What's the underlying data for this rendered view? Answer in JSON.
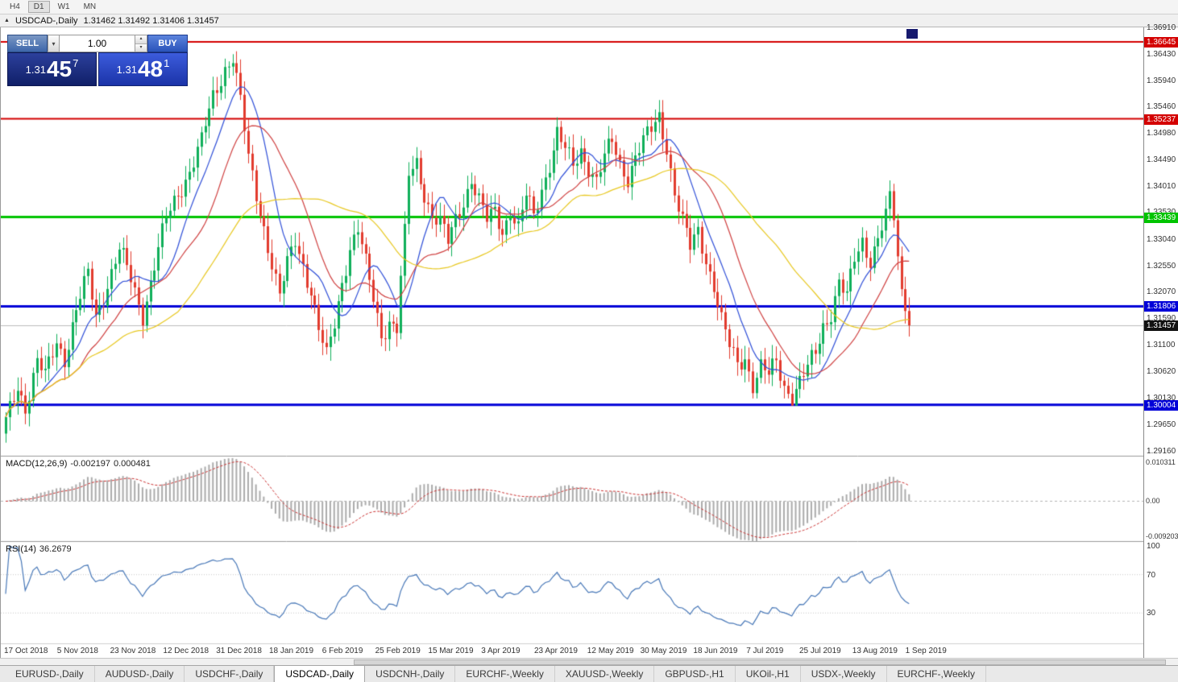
{
  "icons": {
    "chart_icon": "▲",
    "dropdown_arrow": "▾",
    "spin_up": "▴",
    "spin_down": "▾"
  },
  "toolbar": {
    "timeframes": [
      "H4",
      "D1",
      "W1",
      "MN"
    ],
    "active": "D1"
  },
  "chart_header": {
    "symbol_label": "USDCAD-,Daily",
    "ohlc_text": "1.31462 1.31492 1.31406 1.31457"
  },
  "trade_panel": {
    "sell_label": "SELL",
    "buy_label": "BUY",
    "volume": "1.00",
    "sell_price_prefix": "1.31",
    "sell_price_big": "45",
    "sell_price_pip": "7",
    "buy_price_prefix": "1.31",
    "buy_price_big": "48",
    "buy_price_pip": "1"
  },
  "macd_panel": {
    "name": "MACD(12,26,9)",
    "value1": "-0.002197",
    "value2": "0.000481",
    "axis_labels": [
      {
        "text": "0.010311",
        "value": 0.010311
      },
      {
        "text": "0.00",
        "value": 0
      },
      {
        "text": "-0.009203",
        "value": -0.009203
      }
    ]
  },
  "rsi_panel": {
    "name": "RSI(14)",
    "value": "36.2679",
    "axis_labels": [
      {
        "text": "100",
        "value": 100
      },
      {
        "text": "70",
        "value": 70
      },
      {
        "text": "30",
        "value": 30
      }
    ]
  },
  "tabs": [
    {
      "label": "EURUSD-,Daily",
      "active": false
    },
    {
      "label": "AUDUSD-,Daily",
      "active": false
    },
    {
      "label": "USDCHF-,Daily",
      "active": false
    },
    {
      "label": "USDCAD-,Daily",
      "active": true
    },
    {
      "label": "USDCNH-,Daily",
      "active": false
    },
    {
      "label": "EURCHF-,Weekly",
      "active": false
    },
    {
      "label": "XAUUSD-,Weekly",
      "active": false
    },
    {
      "label": "GBPUSD-,H1",
      "active": false
    },
    {
      "label": "UKOil-,H1",
      "active": false
    },
    {
      "label": "USDX-,Weekly",
      "active": false
    },
    {
      "label": "EURCHF-,Weekly",
      "active": false
    }
  ],
  "chart_data": {
    "type": "candlestick",
    "symbol": "USDCAD-",
    "timeframe": "Daily",
    "ohlc_display": {
      "open": "1.31462",
      "high": "1.31492",
      "low": "1.31406",
      "close": "1.31457"
    },
    "price_scale": {
      "top": 1.3691,
      "bottom": 1.2916
    },
    "axis_ticks": [
      "1.36910",
      "1.36430",
      "1.35940",
      "1.35460",
      "1.34980",
      "1.34490",
      "1.34010",
      "1.33530",
      "1.33040",
      "1.32550",
      "1.32070",
      "1.31590",
      "1.31100",
      "1.30620",
      "1.30130",
      "1.29650",
      "1.29160"
    ],
    "levels": [
      {
        "value": 1.36645,
        "label": "1.36645",
        "color": "#d40000",
        "width": 2
      },
      {
        "value": 1.35237,
        "label": "1.35237",
        "color": "#d40000",
        "width": 2
      },
      {
        "value": 1.33439,
        "label": "1.33439",
        "color": "#00c400",
        "width": 3
      },
      {
        "value": 1.31806,
        "label": "1.31806",
        "color": "#0000d8",
        "width": 3
      },
      {
        "value": 1.30004,
        "label": "1.30004",
        "color": "#0000d8",
        "width": 3
      }
    ],
    "current_price": {
      "value": 1.31457,
      "label": "1.31457",
      "color": "#111111"
    },
    "candle_colors": {
      "up": "#0faf5a",
      "down": "#e23b2e"
    },
    "ma": [
      {
        "name": "ma-fast",
        "period": 10,
        "color": "#2f4fd8"
      },
      {
        "name": "ma-mid",
        "period": 20,
        "color": "#d04040"
      },
      {
        "name": "ma-slow",
        "period": 45,
        "color": "#e8c820"
      }
    ],
    "macd": {
      "fast": 12,
      "slow": 26,
      "signal": 9,
      "scale_top": 0.010311,
      "scale_bottom": -0.009203,
      "hist_color": "#ababab",
      "signal_color": "#cc3333"
    },
    "rsi": {
      "period": 14,
      "levels": [
        70,
        30
      ],
      "color": "#4878b8"
    },
    "n_candles": 232,
    "close_anchors": [
      [
        0,
        1.2965
      ],
      [
        3,
        1.304
      ],
      [
        5,
        1.3
      ],
      [
        8,
        1.3075
      ],
      [
        10,
        1.3048
      ],
      [
        13,
        1.312
      ],
      [
        15,
        1.309
      ],
      [
        18,
        1.317
      ],
      [
        21,
        1.3235
      ],
      [
        23,
        1.3165
      ],
      [
        26,
        1.3225
      ],
      [
        29,
        1.328
      ],
      [
        32,
        1.3228
      ],
      [
        35,
        1.317
      ],
      [
        38,
        1.3255
      ],
      [
        41,
        1.3335
      ],
      [
        44,
        1.339
      ],
      [
        47,
        1.3432
      ],
      [
        50,
        1.3478
      ],
      [
        53,
        1.3562
      ],
      [
        56,
        1.3622
      ],
      [
        58,
        1.364
      ],
      [
        60,
        1.3552
      ],
      [
        62,
        1.3445
      ],
      [
        64,
        1.3385
      ],
      [
        66,
        1.333
      ],
      [
        68,
        1.3262
      ],
      [
        70,
        1.3195
      ],
      [
        72,
        1.3252
      ],
      [
        74,
        1.3302
      ],
      [
        76,
        1.3262
      ],
      [
        78,
        1.3212
      ],
      [
        80,
        1.3135
      ],
      [
        82,
        1.3082
      ],
      [
        84,
        1.3148
      ],
      [
        86,
        1.323
      ],
      [
        88,
        1.3292
      ],
      [
        90,
        1.332
      ],
      [
        92,
        1.3252
      ],
      [
        94,
        1.3192
      ],
      [
        96,
        1.3132
      ],
      [
        98,
        1.3158
      ],
      [
        100,
        1.314
      ],
      [
        101,
        1.3225
      ],
      [
        102,
        1.3308
      ],
      [
        103,
        1.3415
      ],
      [
        105,
        1.3442
      ],
      [
        107,
        1.3392
      ],
      [
        109,
        1.335
      ],
      [
        111,
        1.3332
      ],
      [
        113,
        1.3292
      ],
      [
        115,
        1.3338
      ],
      [
        117,
        1.3378
      ],
      [
        119,
        1.3418
      ],
      [
        121,
        1.3372
      ],
      [
        123,
        1.3332
      ],
      [
        125,
        1.3352
      ],
      [
        127,
        1.3322
      ],
      [
        129,
        1.3362
      ],
      [
        131,
        1.3322
      ],
      [
        133,
        1.3378
      ],
      [
        135,
        1.3342
      ],
      [
        137,
        1.3398
      ],
      [
        139,
        1.3448
      ],
      [
        141,
        1.3498
      ],
      [
        143,
        1.3462
      ],
      [
        145,
        1.3432
      ],
      [
        147,
        1.3468
      ],
      [
        149,
        1.3442
      ],
      [
        151,
        1.3412
      ],
      [
        153,
        1.3448
      ],
      [
        155,
        1.3478
      ],
      [
        157,
        1.3442
      ],
      [
        159,
        1.3422
      ],
      [
        161,
        1.3458
      ],
      [
        163,
        1.3478
      ],
      [
        165,
        1.3498
      ],
      [
        167,
        1.3528
      ],
      [
        169,
        1.3478
      ],
      [
        171,
        1.3392
      ],
      [
        173,
        1.3332
      ],
      [
        175,
        1.3282
      ],
      [
        177,
        1.3318
      ],
      [
        179,
        1.3272
      ],
      [
        181,
        1.3222
      ],
      [
        183,
        1.3152
      ],
      [
        185,
        1.3102
      ],
      [
        187,
        1.3072
      ],
      [
        189,
        1.3092
      ],
      [
        191,
        1.3042
      ],
      [
        193,
        1.3068
      ],
      [
        195,
        1.3048
      ],
      [
        197,
        1.3078
      ],
      [
        199,
        1.3038
      ],
      [
        201,
        1.3022
      ],
      [
        203,
        1.3042
      ],
      [
        205,
        1.3062
      ],
      [
        207,
        1.3092
      ],
      [
        209,
        1.3148
      ],
      [
        211,
        1.3175
      ],
      [
        213,
        1.3225
      ],
      [
        215,
        1.3192
      ],
      [
        217,
        1.3262
      ],
      [
        219,
        1.3302
      ],
      [
        221,
        1.3272
      ],
      [
        223,
        1.3308
      ],
      [
        225,
        1.334
      ],
      [
        226,
        1.3372
      ],
      [
        227,
        1.3338
      ],
      [
        228,
        1.3272
      ],
      [
        229,
        1.3212
      ],
      [
        230,
        1.3172
      ],
      [
        231,
        1.31457
      ]
    ],
    "dates": [
      "17 Oct 2018",
      "5 Nov 2018",
      "23 Nov 2018",
      "12 Dec 2018",
      "31 Dec 2018",
      "18 Jan 2019",
      "6 Feb 2019",
      "25 Feb 2019",
      "15 Mar 2019",
      "3 Apr 2019",
      "23 Apr 2019",
      "12 May 2019",
      "30 May 2019",
      "18 Jun 2019",
      "7 Jul 2019",
      "25 Jul 2019",
      "13 Aug 2019",
      "1 Sep 2019"
    ]
  }
}
